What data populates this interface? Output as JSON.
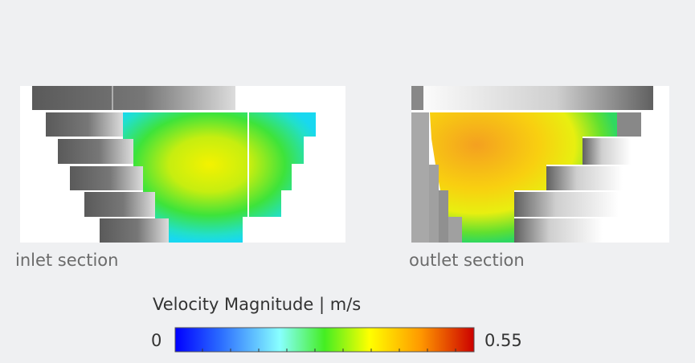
{
  "panels": [
    {
      "label": "inlet section"
    },
    {
      "label": "outlet section"
    }
  ],
  "colorbar": {
    "title": "Velocity Magnitude | m/s",
    "min": 0,
    "max": 0.55
  }
}
